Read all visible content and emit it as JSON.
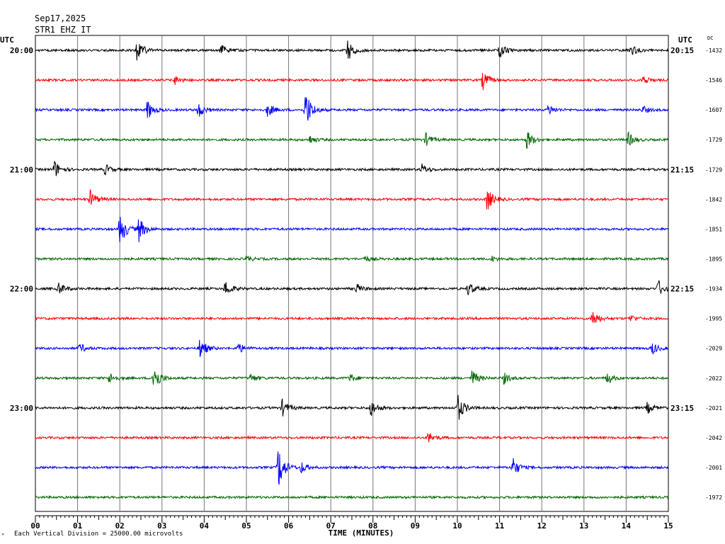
{
  "header": {
    "date": "Sep17,2025",
    "station": "STR1 EHZ IT",
    "utc_left": "UTC",
    "utc_right": "UTC",
    "dc_label": "DC"
  },
  "footer": {
    "vertical_division": "Each Vertical Division = 25000.00 microvolts",
    "corner_mark": "ᴹ"
  },
  "chart_data": {
    "type": "line",
    "title": "",
    "xlabel": "TIME (MINUTES)",
    "ylabel": "",
    "x_ticks": [
      "00",
      "01",
      "02",
      "03",
      "04",
      "05",
      "06",
      "07",
      "08",
      "09",
      "10",
      "11",
      "12",
      "13",
      "14",
      "15"
    ],
    "xlim": [
      0,
      15
    ],
    "grid": true,
    "trace_colors": [
      "#000000",
      "#ff0000",
      "#0000ff",
      "#006400"
    ],
    "left_time_labels": [
      {
        "row": 0,
        "label": "20:00"
      },
      {
        "row": 4,
        "label": "21:00"
      },
      {
        "row": 8,
        "label": "22:00"
      },
      {
        "row": 12,
        "label": "23:00"
      }
    ],
    "right_time_labels": [
      {
        "row": 0,
        "label": "20:15"
      },
      {
        "row": 4,
        "label": "21:15"
      },
      {
        "row": 8,
        "label": "22:15"
      },
      {
        "row": 12,
        "label": "23:15"
      }
    ],
    "rows": [
      {
        "dc": "-1432",
        "events": [
          [
            2.4,
            18
          ],
          [
            4.4,
            8
          ],
          [
            7.4,
            16
          ],
          [
            11.0,
            10
          ],
          [
            14.1,
            8
          ]
        ]
      },
      {
        "dc": "-1546",
        "events": [
          [
            3.3,
            6
          ],
          [
            10.6,
            14
          ],
          [
            14.4,
            7
          ]
        ]
      },
      {
        "dc": "-1607",
        "events": [
          [
            2.65,
            15
          ],
          [
            3.85,
            12
          ],
          [
            5.5,
            10
          ],
          [
            6.4,
            30
          ],
          [
            12.15,
            8
          ],
          [
            14.4,
            5
          ]
        ]
      },
      {
        "dc": "-1729",
        "events": [
          [
            6.5,
            6
          ],
          [
            9.25,
            9
          ],
          [
            11.65,
            14
          ],
          [
            14.05,
            10
          ]
        ]
      },
      {
        "dc": "-1729",
        "events": [
          [
            0.45,
            13
          ],
          [
            1.65,
            8
          ],
          [
            9.15,
            8
          ]
        ]
      },
      {
        "dc": "-1842",
        "events": [
          [
            1.3,
            14
          ],
          [
            10.7,
            18
          ]
        ]
      },
      {
        "dc": "-1851",
        "events": [
          [
            2.0,
            26
          ],
          [
            2.45,
            18
          ]
        ]
      },
      {
        "dc": "-1895",
        "events": [
          [
            5.0,
            4
          ],
          [
            7.8,
            4
          ],
          [
            10.8,
            4
          ]
        ]
      },
      {
        "dc": "-1934",
        "events": [
          [
            0.55,
            9
          ],
          [
            4.5,
            12
          ],
          [
            7.6,
            7
          ],
          [
            10.25,
            10
          ],
          [
            14.75,
            13
          ]
        ]
      },
      {
        "dc": "-1995",
        "events": [
          [
            13.2,
            14
          ],
          [
            14.1,
            5
          ]
        ]
      },
      {
        "dc": "-2029",
        "events": [
          [
            1.05,
            7
          ],
          [
            3.9,
            16
          ],
          [
            4.8,
            8
          ],
          [
            14.6,
            10
          ]
        ]
      },
      {
        "dc": "-2022",
        "events": [
          [
            1.75,
            8
          ],
          [
            2.8,
            22
          ],
          [
            5.1,
            6
          ],
          [
            7.45,
            6
          ],
          [
            10.35,
            12
          ],
          [
            11.1,
            8
          ],
          [
            13.55,
            9
          ]
        ]
      },
      {
        "dc": "-2021",
        "events": [
          [
            5.85,
            12
          ],
          [
            7.95,
            12
          ],
          [
            10.0,
            22
          ],
          [
            14.5,
            8
          ]
        ]
      },
      {
        "dc": "-2042",
        "events": [
          [
            9.3,
            9
          ]
        ]
      },
      {
        "dc": "-2001",
        "events": [
          [
            5.75,
            34
          ],
          [
            6.3,
            8
          ],
          [
            11.3,
            16
          ]
        ]
      },
      {
        "dc": "-1972",
        "events": []
      }
    ]
  }
}
